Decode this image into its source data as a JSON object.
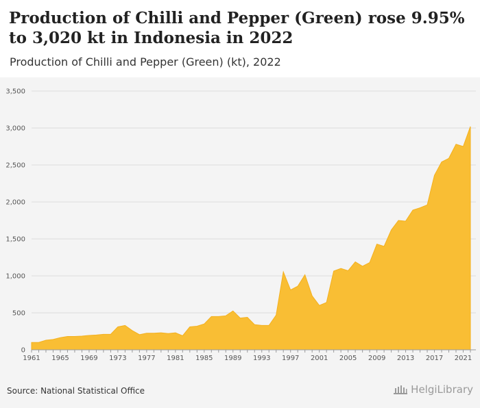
{
  "header": {
    "title": "Production of Chilli and Pepper (Green) rose 9.95% to 3,020 kt in Indonesia in 2022",
    "subtitle": "Production of Chilli and Pepper (Green) (kt), 2022"
  },
  "footer": {
    "source": "Source: National Statistical Office",
    "logo_text": "HelgiLibrary"
  },
  "colors": {
    "area_fill": "#f9be34",
    "area_stroke": "#f3b01e",
    "grid": "#dddddd",
    "axis": "#999999"
  },
  "chart_data": {
    "type": "area",
    "title": "Production of Chilli and Pepper (Green) rose 9.95% to 3,020 kt in Indonesia in 2022",
    "subtitle": "Production of Chilli and Pepper (Green) (kt), 2022",
    "xlabel": "",
    "ylabel": "",
    "ylim": [
      0,
      3500
    ],
    "grid": true,
    "y_ticks": [
      0,
      500,
      1000,
      1500,
      2000,
      2500,
      3000,
      3500
    ],
    "y_tick_labels": [
      "0",
      "500",
      "1,000",
      "1,500",
      "2,000",
      "2,500",
      "3,000",
      "3,500"
    ],
    "x_tick_labels": [
      "1961",
      "1965",
      "1969",
      "1973",
      "1977",
      "1981",
      "1985",
      "1989",
      "1993",
      "1997",
      "2001",
      "2005",
      "2009",
      "2013",
      "2017",
      "2021"
    ],
    "x": [
      1961,
      1962,
      1963,
      1964,
      1965,
      1966,
      1967,
      1968,
      1969,
      1970,
      1971,
      1972,
      1973,
      1974,
      1975,
      1976,
      1977,
      1978,
      1979,
      1980,
      1981,
      1982,
      1983,
      1984,
      1985,
      1986,
      1987,
      1988,
      1989,
      1990,
      1991,
      1992,
      1993,
      1994,
      1995,
      1996,
      1997,
      1998,
      1999,
      2000,
      2001,
      2002,
      2003,
      2004,
      2005,
      2006,
      2007,
      2008,
      2009,
      2010,
      2011,
      2012,
      2013,
      2014,
      2015,
      2016,
      2017,
      2018,
      2019,
      2020,
      2021,
      2022
    ],
    "values": [
      100,
      100,
      130,
      140,
      165,
      180,
      180,
      185,
      195,
      200,
      210,
      210,
      310,
      330,
      260,
      205,
      225,
      225,
      230,
      220,
      230,
      190,
      310,
      320,
      350,
      450,
      450,
      460,
      525,
      430,
      440,
      340,
      330,
      330,
      470,
      1055,
      810,
      860,
      1015,
      730,
      600,
      640,
      1065,
      1100,
      1070,
      1190,
      1130,
      1180,
      1430,
      1400,
      1620,
      1750,
      1740,
      1890,
      1920,
      1960,
      2360,
      2540,
      2590,
      2780,
      2750,
      3020
    ]
  }
}
